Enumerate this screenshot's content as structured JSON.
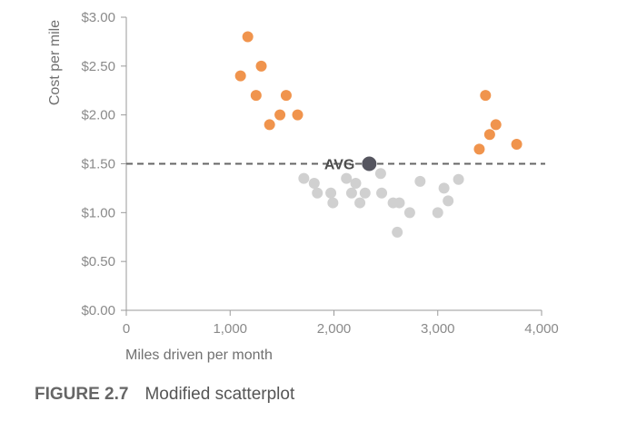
{
  "caption": {
    "figure": "FIGURE 2.7",
    "title": "Modified scatterplot"
  },
  "chart_data": {
    "type": "scatter",
    "title": "",
    "xlabel": "Miles driven per month",
    "ylabel": "Cost per mile",
    "xlim": [
      0,
      4000
    ],
    "ylim": [
      0,
      3
    ],
    "x_ticks": [
      0,
      1000,
      2000,
      3000,
      4000
    ],
    "x_tick_labels": [
      "0",
      "1,000",
      "2,000",
      "3,000",
      "4,000"
    ],
    "y_ticks": [
      0,
      0.5,
      1,
      1.5,
      2,
      2.5,
      3
    ],
    "y_tick_labels": [
      "$0.00",
      "$0.50",
      "$1.00",
      "$1.50",
      "$2.00",
      "$2.50",
      "$3.00"
    ],
    "grid": false,
    "average": {
      "label": "AVG",
      "x": 2340,
      "y": 1.5,
      "color": "#55555f",
      "line_color": "#666666"
    },
    "series": [
      {
        "color": "#f0944d",
        "points": [
          [
            1100,
            2.4
          ],
          [
            1170,
            2.8
          ],
          [
            1250,
            2.2
          ],
          [
            1300,
            2.5
          ],
          [
            1380,
            1.9
          ],
          [
            1480,
            2.0
          ],
          [
            1540,
            2.2
          ],
          [
            1650,
            2.0
          ],
          [
            3400,
            1.65
          ],
          [
            3460,
            2.2
          ],
          [
            3500,
            1.8
          ],
          [
            3560,
            1.9
          ],
          [
            3760,
            1.7
          ]
        ]
      },
      {
        "color": "#d0d0d0",
        "points": [
          [
            1710,
            1.35
          ],
          [
            1810,
            1.3
          ],
          [
            1840,
            1.2
          ],
          [
            1970,
            1.2
          ],
          [
            1990,
            1.1
          ],
          [
            2120,
            1.35
          ],
          [
            2170,
            1.2
          ],
          [
            2210,
            1.3
          ],
          [
            2250,
            1.1
          ],
          [
            2300,
            1.2
          ],
          [
            2450,
            1.4
          ],
          [
            2460,
            1.2
          ],
          [
            2570,
            1.1
          ],
          [
            2610,
            0.8
          ],
          [
            2630,
            1.1
          ],
          [
            2730,
            1.0
          ],
          [
            2830,
            1.32
          ],
          [
            3000,
            1.0
          ],
          [
            3060,
            1.25
          ],
          [
            3100,
            1.12
          ],
          [
            3200,
            1.34
          ]
        ]
      }
    ]
  }
}
